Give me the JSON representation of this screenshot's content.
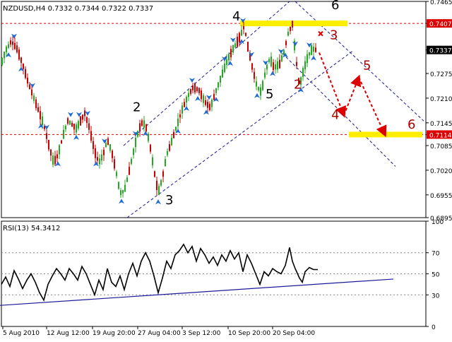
{
  "header": {
    "symbol_info": "NZDUSD,H4  0.7332 0.7344 0.7322 0.7337",
    "rsi_info": "RSI(13) 54.3412"
  },
  "chart_data": [
    {
      "type": "candlestick",
      "title": "NZDUSD,H4",
      "ohlc": {
        "open": 0.7332,
        "high": 0.7344,
        "low": 0.7322,
        "close": 0.7337
      },
      "ylim": [
        0.6895,
        0.7465
      ],
      "y_ticks": [
        "0.7465",
        "0.7407",
        "0.7337",
        "0.7275",
        "0.7210",
        "0.7145",
        "0.7114",
        "0.7085",
        "0.7020",
        "0.6955",
        "0.6895"
      ],
      "highlighted_levels": [
        {
          "value": 0.7407,
          "label": "0.7407",
          "color": "#dd0000"
        },
        {
          "value": 0.7337,
          "label": "0.7337",
          "color": "#000000"
        },
        {
          "value": 0.7114,
          "label": "0.7114",
          "color": "#dd0000"
        }
      ],
      "x_tick_labels": [
        "5 Aug 2010",
        "12 Aug 12:00",
        "19 Aug 20:00",
        "27 Aug 04:00",
        "3 Sep 12:00",
        "10 Sep 20:00",
        "20 Sep 04:00"
      ],
      "price_path": [
        [
          0,
          0.729
        ],
        [
          8,
          0.7335
        ],
        [
          16,
          0.736
        ],
        [
          24,
          0.734
        ],
        [
          32,
          0.73
        ],
        [
          40,
          0.725
        ],
        [
          48,
          0.721
        ],
        [
          56,
          0.717
        ],
        [
          62,
          0.714
        ],
        [
          70,
          0.708
        ],
        [
          76,
          0.704
        ],
        [
          82,
          0.706
        ],
        [
          90,
          0.7115
        ],
        [
          96,
          0.715
        ],
        [
          102,
          0.714
        ],
        [
          108,
          0.713
        ],
        [
          114,
          0.715
        ],
        [
          120,
          0.717
        ],
        [
          126,
          0.7135
        ],
        [
          134,
          0.707
        ],
        [
          140,
          0.704
        ],
        [
          146,
          0.706
        ],
        [
          152,
          0.71
        ],
        [
          158,
          0.707
        ],
        [
          164,
          0.702
        ],
        [
          170,
          0.696
        ],
        [
          176,
          0.6965
        ],
        [
          182,
          0.701
        ],
        [
          188,
          0.706
        ],
        [
          194,
          0.711
        ],
        [
          200,
          0.7145
        ],
        [
          206,
          0.714
        ],
        [
          212,
          0.709
        ],
        [
          218,
          0.702
        ],
        [
          224,
          0.696
        ],
        [
          230,
          0.7
        ],
        [
          236,
          0.706
        ],
        [
          242,
          0.709
        ],
        [
          250,
          0.7135
        ],
        [
          258,
          0.718
        ],
        [
          266,
          0.7215
        ],
        [
          274,
          0.724
        ],
        [
          282,
          0.723
        ],
        [
          290,
          0.72
        ],
        [
          298,
          0.7185
        ],
        [
          306,
          0.723
        ],
        [
          314,
          0.727
        ],
        [
          322,
          0.731
        ],
        [
          330,
          0.734
        ],
        [
          338,
          0.7365
        ],
        [
          346,
          0.74
        ],
        [
          352,
          0.7335
        ],
        [
          358,
          0.7285
        ],
        [
          364,
          0.724
        ],
        [
          370,
          0.7225
        ],
        [
          376,
          0.728
        ],
        [
          382,
          0.7315
        ],
        [
          388,
          0.729
        ],
        [
          396,
          0.73
        ],
        [
          402,
          0.733
        ],
        [
          408,
          0.738
        ],
        [
          414,
          0.7405
        ],
        [
          418,
          0.733
        ],
        [
          424,
          0.724
        ],
        [
          430,
          0.7285
        ],
        [
          436,
          0.732
        ],
        [
          442,
          0.734
        ],
        [
          448,
          0.7337
        ]
      ],
      "fractal_arrows_above_x": [
        20,
        46,
        66,
        100,
        112,
        124,
        148,
        192,
        272,
        296,
        318,
        330,
        344,
        356,
        376,
        398,
        418,
        438
      ],
      "fractal_arrows_below_x": [
        12,
        30,
        58,
        82,
        108,
        136,
        172,
        206,
        224,
        252,
        264,
        280,
        292,
        306,
        326,
        342,
        364,
        386,
        404,
        426,
        444
      ],
      "channel": {
        "upper": [
          [
            175,
            0.7085
          ],
          [
            410,
            0.7465
          ]
        ],
        "lower": [
          [
            180,
            0.6895
          ],
          [
            500,
            0.7335
          ]
        ],
        "declining_upper": [
          [
            418,
            0.7465
          ],
          [
            600,
            0.715
          ]
        ],
        "declining_lower": [
          [
            395,
            0.7337
          ],
          [
            560,
            0.703
          ]
        ]
      },
      "forecast_path": [
        [
          452,
          0.733
        ],
        [
          487,
          0.7165
        ],
        [
          508,
          0.7265
        ],
        [
          545,
          0.7114
        ]
      ],
      "wave_labels": [
        {
          "text": "2",
          "x": 188,
          "y": 0.7175,
          "color": "#000000"
        },
        {
          "text": "3",
          "x": 234,
          "y": 0.693,
          "color": "#000000"
        },
        {
          "text": "4",
          "x": 329,
          "y": 0.7415,
          "color": "#000000"
        },
        {
          "text": "5",
          "x": 376,
          "y": 0.721,
          "color": "#000000"
        },
        {
          "text": "6",
          "x": 469,
          "y": 0.7445,
          "color": "#000000"
        },
        {
          "text": "2",
          "x": 416,
          "y": 0.7235,
          "color": "#aa0000"
        },
        {
          "text": "3",
          "x": 467,
          "y": 0.7365,
          "color": "#aa0000"
        },
        {
          "text": "4",
          "x": 469,
          "y": 0.7155,
          "color": "#aa0000"
        },
        {
          "text": "5",
          "x": 514,
          "y": 0.7285,
          "color": "#aa0000"
        },
        {
          "text": "6",
          "x": 577,
          "y": 0.713,
          "color": "#aa0000"
        }
      ],
      "target_zones": [
        {
          "from_x": 340,
          "to_x": 492,
          "value": 0.7407
        },
        {
          "from_x": 494,
          "to_x": 598,
          "value": 0.7114
        }
      ],
      "colors": {
        "up": "#22aa22",
        "down": "#cc0000",
        "channel": "#1a1a99",
        "arrows": "#1e6ad0",
        "highlight": "#ffee00",
        "forecast": "#dd0000"
      }
    },
    {
      "type": "line",
      "title": "RSI(13)",
      "last_value": 54.3412,
      "ylim": [
        0,
        100
      ],
      "y_ticks": [
        "100",
        "70",
        "50",
        "30",
        "0"
      ],
      "levels": [
        70,
        50,
        30
      ],
      "rsi": [
        [
          2,
          40
        ],
        [
          8,
          47
        ],
        [
          14,
          38
        ],
        [
          20,
          53
        ],
        [
          26,
          45
        ],
        [
          32,
          36
        ],
        [
          38,
          44
        ],
        [
          44,
          50
        ],
        [
          50,
          42
        ],
        [
          56,
          32
        ],
        [
          62,
          25
        ],
        [
          68,
          40
        ],
        [
          74,
          48
        ],
        [
          80,
          55
        ],
        [
          86,
          50
        ],
        [
          92,
          44
        ],
        [
          98,
          55
        ],
        [
          104,
          50
        ],
        [
          110,
          44
        ],
        [
          116,
          57
        ],
        [
          122,
          50
        ],
        [
          128,
          40
        ],
        [
          134,
          30
        ],
        [
          140,
          44
        ],
        [
          146,
          35
        ],
        [
          152,
          55
        ],
        [
          158,
          42
        ],
        [
          164,
          38
        ],
        [
          170,
          48
        ],
        [
          176,
          35
        ],
        [
          182,
          50
        ],
        [
          188,
          60
        ],
        [
          194,
          48
        ],
        [
          200,
          62
        ],
        [
          206,
          70
        ],
        [
          212,
          62
        ],
        [
          218,
          48
        ],
        [
          224,
          32
        ],
        [
          230,
          46
        ],
        [
          236,
          62
        ],
        [
          242,
          55
        ],
        [
          248,
          68
        ],
        [
          254,
          72
        ],
        [
          260,
          78
        ],
        [
          266,
          70
        ],
        [
          272,
          76
        ],
        [
          278,
          62
        ],
        [
          284,
          74
        ],
        [
          290,
          68
        ],
        [
          296,
          60
        ],
        [
          302,
          66
        ],
        [
          308,
          58
        ],
        [
          314,
          68
        ],
        [
          320,
          62
        ],
        [
          326,
          72
        ],
        [
          332,
          64
        ],
        [
          338,
          70
        ],
        [
          344,
          52
        ],
        [
          350,
          68
        ],
        [
          356,
          60
        ],
        [
          362,
          50
        ],
        [
          368,
          40
        ],
        [
          374,
          52
        ],
        [
          380,
          48
        ],
        [
          386,
          55
        ],
        [
          392,
          52
        ],
        [
          398,
          50
        ],
        [
          404,
          58
        ],
        [
          410,
          75
        ],
        [
          414,
          62
        ],
        [
          418,
          55
        ],
        [
          424,
          46
        ],
        [
          428,
          42
        ],
        [
          432,
          52
        ],
        [
          438,
          56
        ],
        [
          444,
          54
        ],
        [
          450,
          54
        ]
      ],
      "trendline": [
        [
          0,
          20
        ],
        [
          557,
          45
        ]
      ],
      "colors": {
        "line": "#000000",
        "trendline": "#1a1a99",
        "levels": "#888888"
      }
    }
  ]
}
